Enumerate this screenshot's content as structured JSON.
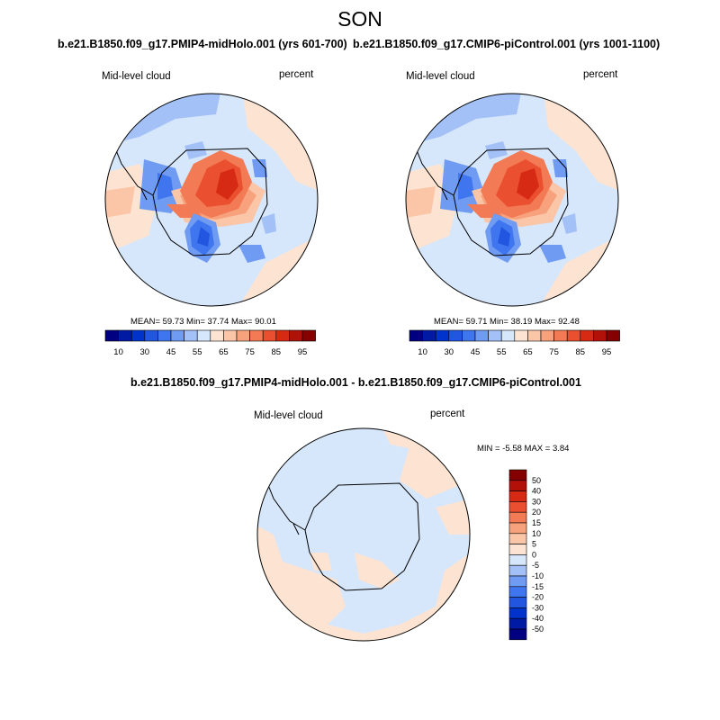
{
  "figure": {
    "title": "SON"
  },
  "colors": {
    "scale": [
      "#000080",
      "#001aa3",
      "#0033cc",
      "#2255e0",
      "#3f75ee",
      "#6f9bf3",
      "#a3c1f7",
      "#d6e6fb",
      "#fde4d2",
      "#fbc6a8",
      "#f7a27d",
      "#f27a55",
      "#ea4f2f",
      "#d72a14",
      "#b2110a",
      "#850000"
    ],
    "ocean_warm": "#fde4d2",
    "ocean_cool": "#d6e6fb",
    "outline": "#000000"
  },
  "panels": [
    {
      "id": "left",
      "title": "b.e21.B1850.f09_g17.PMIP4-midHolo.001 (yrs 601-700)",
      "variable": "Mid-level cloud",
      "units": "percent",
      "stats": "MEAN=  59.73  Min=  37.74  Max=  90.01"
    },
    {
      "id": "right",
      "title": "b.e21.B1850.f09_g17.CMIP6-piControl.001 (yrs 1001-1100)",
      "variable": "Mid-level cloud",
      "units": "percent",
      "stats": "MEAN=  59.71  Min=  38.19  Max=  92.48"
    },
    {
      "id": "diff",
      "title": "b.e21.B1850.f09_g17.PMIP4-midHolo.001 - b.e21.B1850.f09_g17.CMIP6-piControl.001",
      "variable": "Mid-level cloud",
      "units": "percent",
      "stats": "MIN =  -5.58 MAX =   3.84"
    }
  ],
  "colorbar_abs": {
    "labels": [
      "10",
      "30",
      "45",
      "55",
      "65",
      "75",
      "85",
      "95"
    ]
  },
  "colorbar_diff": {
    "labels": [
      "50",
      "40",
      "30",
      "20",
      "15",
      "10",
      "5",
      "0",
      "-5",
      "-10",
      "-15",
      "-20",
      "-30",
      "-40",
      "-50"
    ]
  }
}
